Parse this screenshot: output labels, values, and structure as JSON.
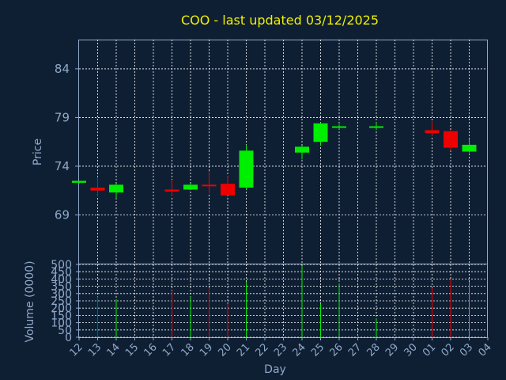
{
  "title": "COO - last updated 03/12/2025",
  "colors": {
    "background": "#0f1f33",
    "up": "#00ee00",
    "down": "#ee0000",
    "grid": "#ffffff",
    "text": "#8fa8c8",
    "title": "#f0f000"
  },
  "chart_data": {
    "type": "candlestick",
    "title": "COO - last updated 03/12/2025",
    "price_ylabel": "Price",
    "volume_ylabel": "Volume (0000)",
    "xlabel": "Day",
    "price_ylim": [
      64,
      87
    ],
    "price_ticks": [
      69,
      74,
      79,
      84
    ],
    "volume_ylim": [
      0,
      500
    ],
    "volume_ticks": [
      0,
      50,
      100,
      150,
      200,
      250,
      300,
      350,
      400,
      450,
      500
    ],
    "x_tick_labels": [
      "12",
      "13",
      "14",
      "15",
      "16",
      "17",
      "18",
      "19",
      "20",
      "21",
      "22",
      "23",
      "24",
      "25",
      "26",
      "27",
      "28",
      "29",
      "30",
      "01",
      "02",
      "03",
      "04"
    ],
    "grid": true,
    "candles": [
      {
        "day": "12",
        "open": 72.3,
        "high": 72.5,
        "low": 72.2,
        "close": 72.5,
        "volume": 0
      },
      {
        "day": "13",
        "open": 71.8,
        "high": 72.9,
        "low": 70.9,
        "close": 71.5,
        "volume": 280
      },
      {
        "day": "14",
        "open": 71.3,
        "high": 72.2,
        "low": 70.7,
        "close": 72.1,
        "volume": 260
      },
      {
        "day": "17",
        "open": 71.6,
        "high": 72.6,
        "low": 70.9,
        "close": 71.4,
        "volume": 320
      },
      {
        "day": "18",
        "open": 71.6,
        "high": 72.2,
        "low": 71.6,
        "close": 72.1,
        "volume": 280
      },
      {
        "day": "19",
        "open": 72.1,
        "high": 73.5,
        "low": 71.2,
        "close": 72.0,
        "volume": 340
      },
      {
        "day": "20",
        "open": 72.2,
        "high": 73.0,
        "low": 71.0,
        "close": 71.0,
        "volume": 230
      },
      {
        "day": "21",
        "open": 71.8,
        "high": 76.2,
        "low": 71.6,
        "close": 75.6,
        "volume": 380
      },
      {
        "day": "24",
        "open": 75.4,
        "high": 76.1,
        "low": 74.7,
        "close": 76.0,
        "volume": 490
      },
      {
        "day": "25",
        "open": 76.5,
        "high": 78.5,
        "low": 76.1,
        "close": 78.4,
        "volume": 230
      },
      {
        "day": "26",
        "open": 78.0,
        "high": 78.3,
        "low": 77.8,
        "close": 78.1,
        "volume": 370
      },
      {
        "day": "28",
        "open": 78.0,
        "high": 78.5,
        "low": 77.7,
        "close": 78.1,
        "volume": 130
      },
      {
        "day": "01",
        "open": 77.7,
        "high": 78.6,
        "low": 77.1,
        "close": 77.4,
        "volume": 340
      },
      {
        "day": "02",
        "open": 77.6,
        "high": 77.7,
        "low": 75.6,
        "close": 75.9,
        "volume": 400
      },
      {
        "day": "03",
        "open": 75.5,
        "high": 76.8,
        "low": 75.4,
        "close": 76.2,
        "volume": 380
      }
    ]
  }
}
